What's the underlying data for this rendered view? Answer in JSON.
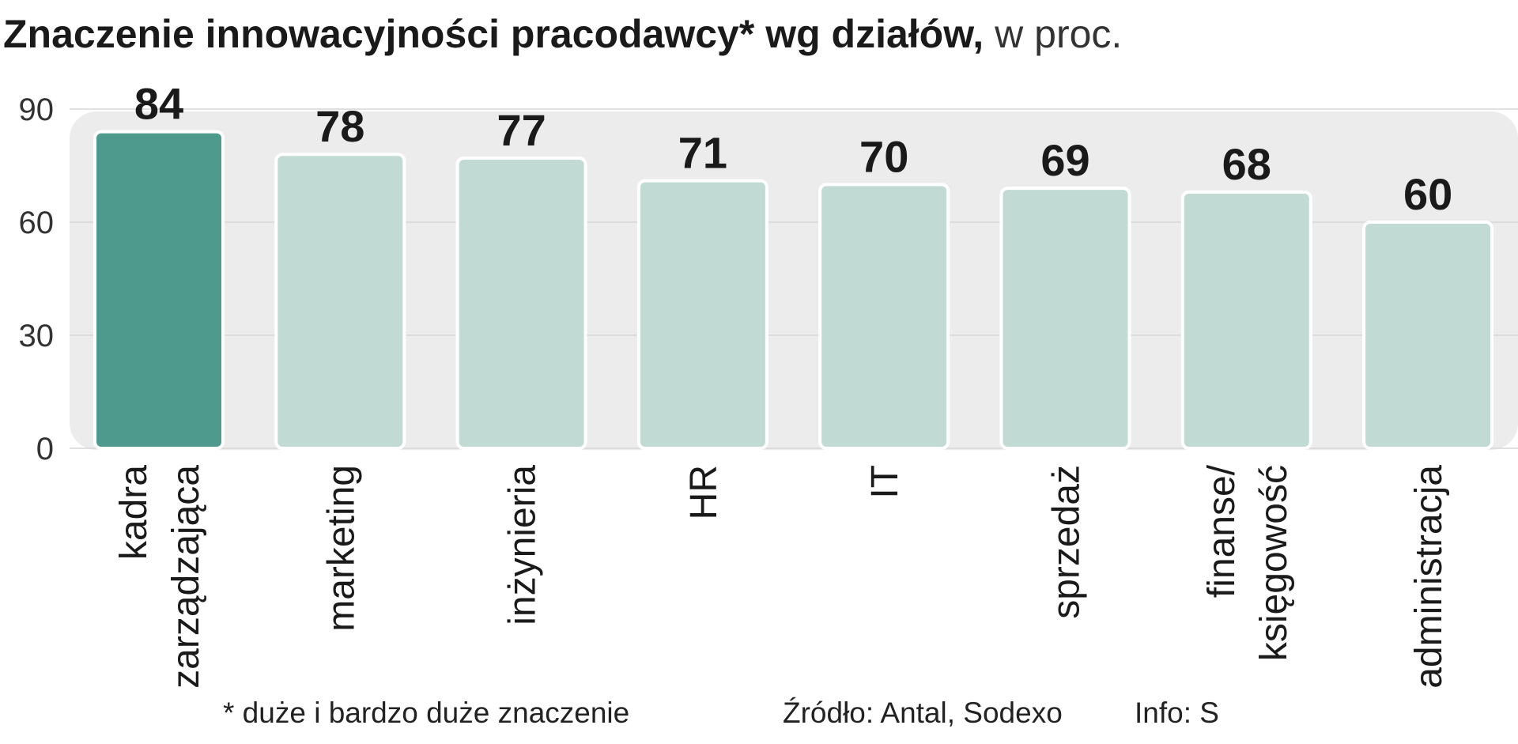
{
  "chart_data": {
    "type": "bar",
    "title": "Znaczenie innowacyjności pracodawcy* wg działów,",
    "unit": "w proc.",
    "categories": [
      [
        "kadra",
        "zarządzająca"
      ],
      [
        "marketing"
      ],
      [
        "inżynieria"
      ],
      [
        "HR"
      ],
      [
        "IT"
      ],
      [
        "sprzedaż"
      ],
      [
        "finanse/",
        "księgowość"
      ],
      [
        "administracja"
      ]
    ],
    "values": [
      84,
      78,
      77,
      71,
      70,
      69,
      68,
      60
    ],
    "colors": [
      "#4e9a8c",
      "#c1dbd4",
      "#c1dbd4",
      "#c1dbd4",
      "#c1dbd4",
      "#c1dbd4",
      "#c1dbd4",
      "#c1dbd4"
    ],
    "ylim": [
      0,
      90
    ],
    "yticks": [
      0,
      30,
      60,
      90
    ],
    "grid": true,
    "footnote": "* duże i bardzo duże znaczenie",
    "source": "Źródło: Antal, Sodexo",
    "credit": "Info: S"
  }
}
